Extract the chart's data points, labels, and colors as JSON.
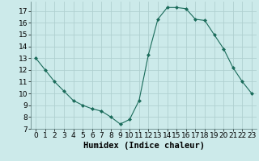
{
  "x": [
    0,
    1,
    2,
    3,
    4,
    5,
    6,
    7,
    8,
    9,
    10,
    11,
    12,
    13,
    14,
    15,
    16,
    17,
    18,
    19,
    20,
    21,
    22,
    23
  ],
  "y": [
    13,
    12,
    11.0,
    10.2,
    9.4,
    9.0,
    8.7,
    8.5,
    8.0,
    7.4,
    7.8,
    9.4,
    13.3,
    16.3,
    17.3,
    17.3,
    17.2,
    16.3,
    16.2,
    15.0,
    13.8,
    12.2,
    11.0,
    10.0
  ],
  "line_color": "#1a6b5a",
  "marker": "D",
  "marker_size": 2.0,
  "bg_color": "#cceaea",
  "grid_color": "#b0d0d0",
  "xlabel": "Humidex (Indice chaleur)",
  "xlabel_fontsize": 7.5,
  "tick_fontsize": 6.5,
  "ylim": [
    7,
    17.8
  ],
  "xlim": [
    -0.5,
    23.5
  ],
  "yticks": [
    7,
    8,
    9,
    10,
    11,
    12,
    13,
    14,
    15,
    16,
    17
  ],
  "xticks": [
    0,
    1,
    2,
    3,
    4,
    5,
    6,
    7,
    8,
    9,
    10,
    11,
    12,
    13,
    14,
    15,
    16,
    17,
    18,
    19,
    20,
    21,
    22,
    23
  ]
}
